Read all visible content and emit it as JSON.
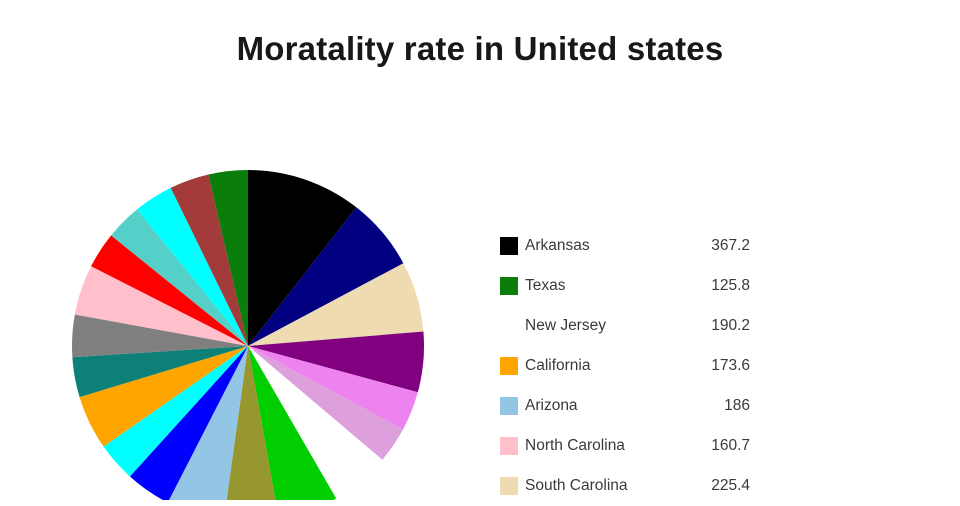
{
  "chart_data": {
    "type": "pie",
    "title": "Moratality rate in United states",
    "legend_position": "right",
    "legend": [
      {
        "label": "Arkansas",
        "value": "367.2",
        "color": "#000000"
      },
      {
        "label": "Texas",
        "value": "125.8",
        "color": "#0A7D0A"
      },
      {
        "label": "New Jersey",
        "value": "190.2",
        "color": "#FFFFFF"
      },
      {
        "label": "California",
        "value": "173.6",
        "color": "#FFA500"
      },
      {
        "label": "Arizona",
        "value": "186",
        "color": "#93C5E4"
      },
      {
        "label": "North Carolina",
        "value": "160.7",
        "color": "#FFC0CB"
      },
      {
        "label": "South Carolina",
        "value": "225.4",
        "color": "#EFDBB2"
      }
    ],
    "slices": [
      {
        "label": "Arkansas",
        "value": 367.2,
        "color": "#000000"
      },
      {
        "label": null,
        "value": 232,
        "color": "#000080"
      },
      {
        "label": "South Carolina",
        "value": 225.4,
        "color": "#EFDBB2"
      },
      {
        "label": null,
        "value": 193,
        "color": "#800080"
      },
      {
        "label": null,
        "value": 126,
        "color": "#EE82EE"
      },
      {
        "label": null,
        "value": 116,
        "color": "#DDA0DD"
      },
      {
        "label": "New Jersey",
        "value": 190.2,
        "color": "#FFFFFF"
      },
      {
        "label": null,
        "value": 193,
        "color": "#00CE00"
      },
      {
        "label": null,
        "value": 174,
        "color": "#97972F"
      },
      {
        "label": "Arizona",
        "value": 186,
        "color": "#93C5E4"
      },
      {
        "label": null,
        "value": 145,
        "color": "#0000FF"
      },
      {
        "label": null,
        "value": 126,
        "color": "#00FFFF"
      },
      {
        "label": "California",
        "value": 173.6,
        "color": "#FFA500"
      },
      {
        "label": null,
        "value": 128,
        "color": "#0D8077"
      },
      {
        "label": null,
        "value": 135,
        "color": "#808080"
      },
      {
        "label": "North Carolina",
        "value": 160.7,
        "color": "#FFC0CB"
      },
      {
        "label": null,
        "value": 116,
        "color": "#FF0000"
      },
      {
        "label": null,
        "value": 116,
        "color": "#55D0C8"
      },
      {
        "label": null,
        "value": 126,
        "color": "#00FFFF"
      },
      {
        "label": null,
        "value": 126,
        "color": "#A33B3B"
      },
      {
        "label": "Texas",
        "value": 125.8,
        "color": "#0A7D0A"
      }
    ]
  }
}
